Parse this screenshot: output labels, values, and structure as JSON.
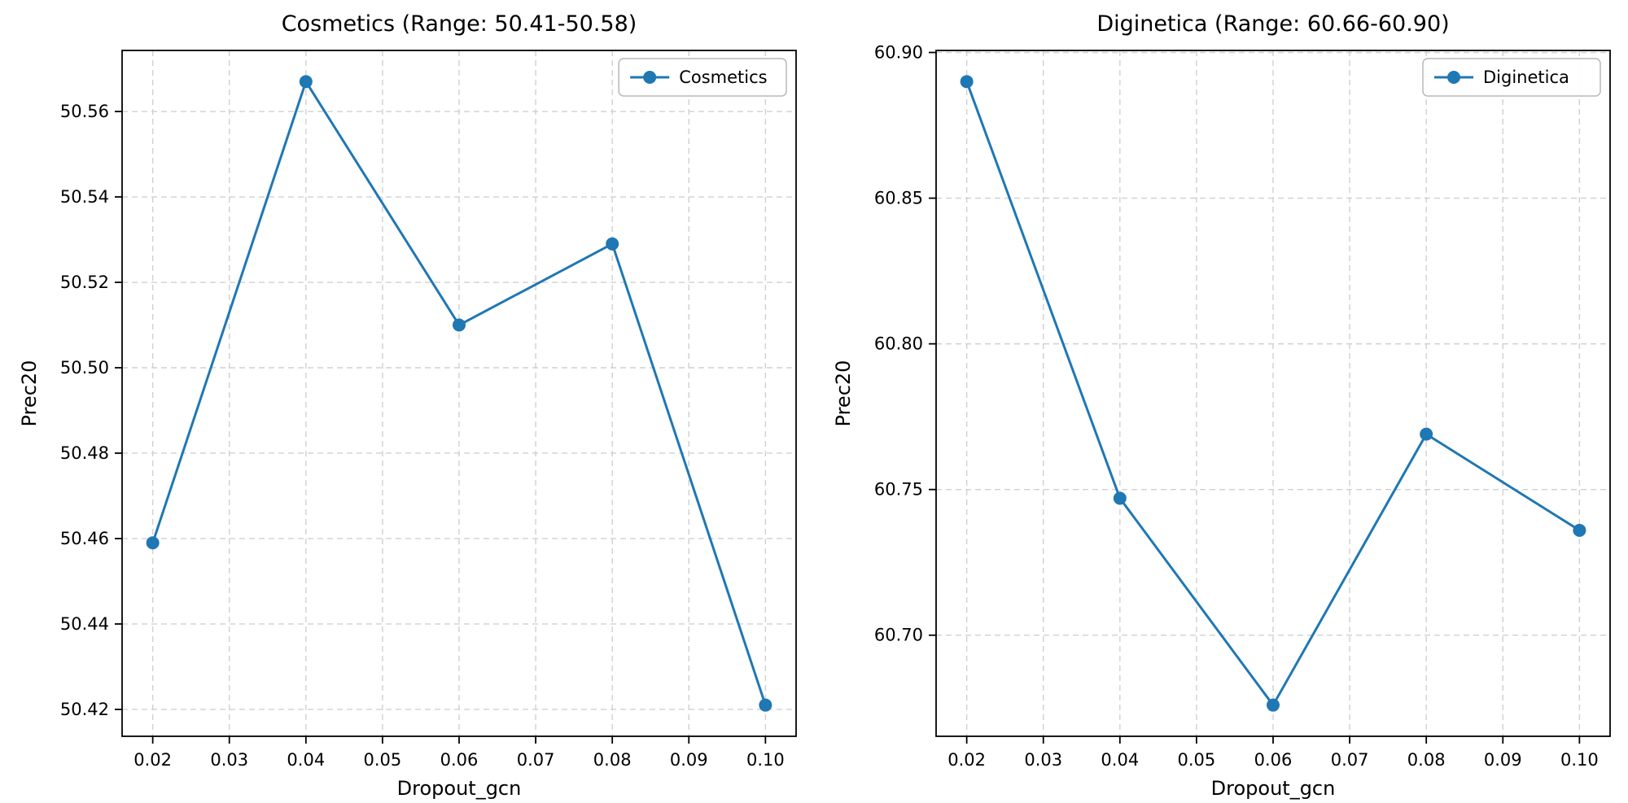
{
  "figure": {
    "background": "#ffffff",
    "accent_color": "#1f77b4",
    "grid_color": "#d0d0d0"
  },
  "chart_data": [
    {
      "type": "line",
      "title": "Cosmetics (Range: 50.41-50.58)",
      "xlabel": "Dropout_gcn",
      "ylabel": "Prec20",
      "x": [
        0.02,
        0.04,
        0.06,
        0.08,
        0.1
      ],
      "series": [
        {
          "name": "Cosmetics",
          "values": [
            50.459,
            50.567,
            50.51,
            50.529,
            50.421
          ]
        }
      ],
      "xticks": [
        0.02,
        0.03,
        0.04,
        0.05,
        0.06,
        0.07,
        0.08,
        0.09,
        0.1
      ],
      "yticks": [
        50.42,
        50.44,
        50.46,
        50.48,
        50.5,
        50.52,
        50.54,
        50.56
      ],
      "xlim": [
        0.016,
        0.104
      ],
      "ylim": [
        50.4137,
        50.5743
      ],
      "line_color": "#1f77b4",
      "grid": true,
      "grid_style": "dashed",
      "legend_position": "top-right",
      "legend_label": "Cosmetics"
    },
    {
      "type": "line",
      "title": "Diginetica (Range: 60.66-60.90)",
      "xlabel": "Dropout_gcn",
      "ylabel": "Prec20",
      "x": [
        0.02,
        0.04,
        0.06,
        0.08,
        0.1
      ],
      "series": [
        {
          "name": "Diginetica",
          "values": [
            60.89,
            60.747,
            60.676,
            60.769,
            60.736
          ]
        }
      ],
      "xticks": [
        0.02,
        0.03,
        0.04,
        0.05,
        0.06,
        0.07,
        0.08,
        0.09,
        0.1
      ],
      "yticks": [
        60.7,
        60.75,
        60.8,
        60.85,
        60.9
      ],
      "xlim": [
        0.016,
        0.104
      ],
      "ylim": [
        60.6653,
        60.9007
      ],
      "line_color": "#1f77b4",
      "grid": true,
      "grid_style": "dashed",
      "legend_position": "top-right",
      "legend_label": "Diginetica"
    }
  ]
}
